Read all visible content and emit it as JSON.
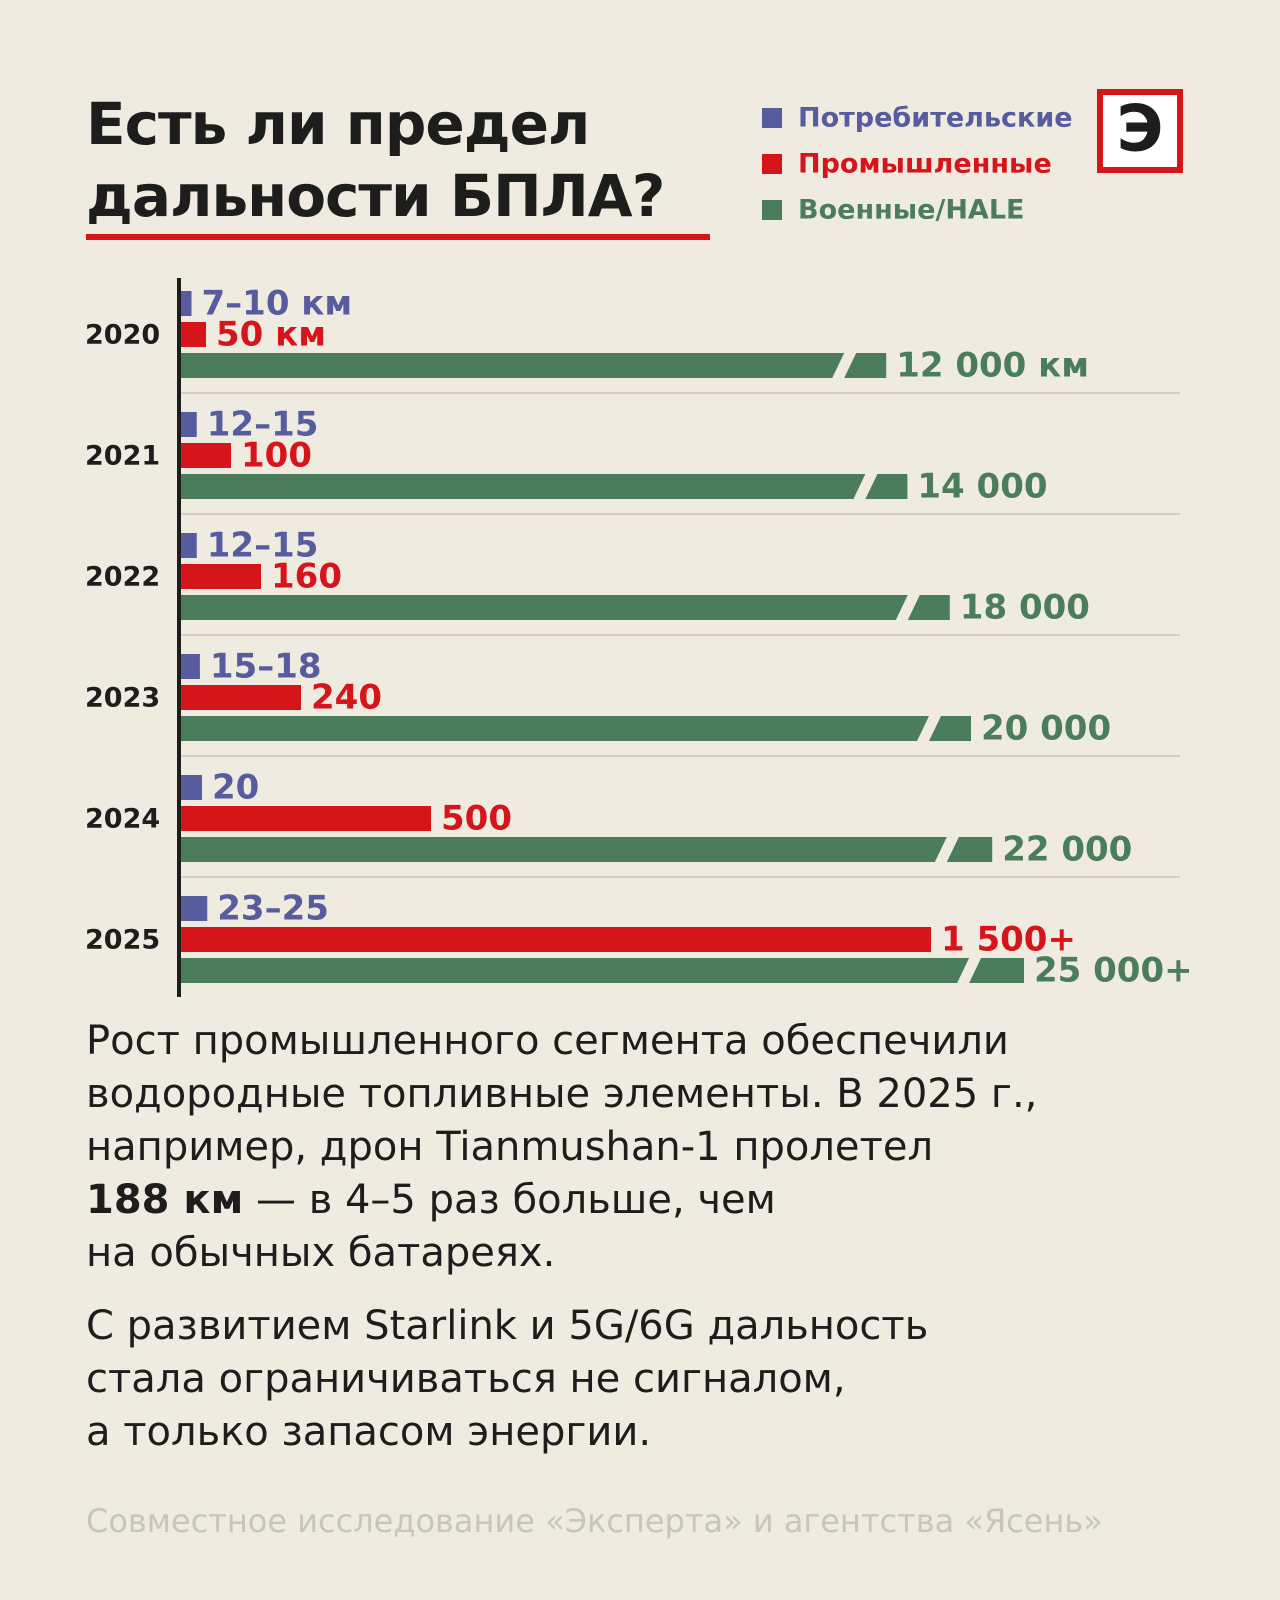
{
  "logo": "Э",
  "chart_data": {
    "type": "bar",
    "orientation": "horizontal",
    "title": [
      "Есть ли предел",
      "дальности БПЛА?"
    ],
    "categories": [
      "2020",
      "2021",
      "2022",
      "2023",
      "2024",
      "2025"
    ],
    "series": [
      {
        "name": "Потребительские",
        "color": "#575c9e",
        "values": [
          10,
          15,
          15,
          18,
          20,
          25
        ],
        "value_labels": [
          "7–10 км",
          "12–15",
          "12–15",
          "15–18",
          "20",
          "23–25"
        ]
      },
      {
        "name": "Промышленные",
        "color": "#d6151b",
        "values": [
          50,
          100,
          160,
          240,
          500,
          1500
        ],
        "value_labels": [
          "50 км",
          "100",
          "160",
          "240",
          "500",
          "1 500+"
        ]
      },
      {
        "name": "Военные/HALE",
        "color": "#4b7d5d",
        "values": [
          12000,
          14000,
          18000,
          20000,
          22000,
          25000
        ],
        "value_labels": [
          "12 000 км",
          "14 000",
          "18 000",
          "20 000",
          "22 000",
          "25 000+"
        ]
      }
    ]
  },
  "notes": [
    {
      "lines": [
        "Рост промышленного сегмента обеспечили",
        "водородные топливные элементы. В 2025 г.,",
        "например, дрон Tianmushan-1 пролетел",
        {
          "bold": "188 км",
          "text": " — в 4–5 раз больше, чем"
        },
        "на обычных батареях."
      ]
    },
    {
      "lines": [
        "С развитием Starlink и 5G/6G дальность",
        "стала ограничиваться не сигналом,",
        "а только запасом энергии."
      ]
    }
  ],
  "footer": "Совместное исследование «Эксперта» и агентства «Ясень»"
}
